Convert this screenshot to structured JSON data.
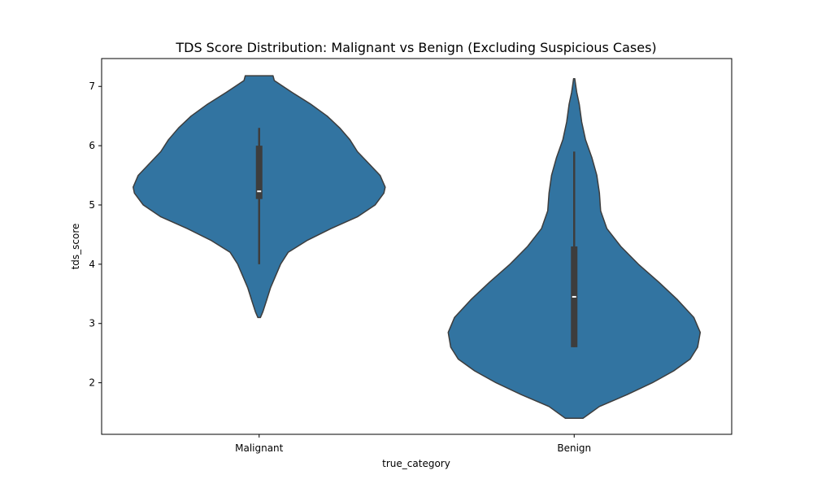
{
  "chart_data": {
    "type": "violin",
    "title": "TDS Score Distribution: Malignant vs Benign (Excluding Suspicious Cases)",
    "xlabel": "true_category",
    "ylabel": "tds_score",
    "categories": [
      "Malignant",
      "Benign"
    ],
    "ylim": [
      1.13,
      7.47
    ],
    "yticks": [
      2,
      3,
      4,
      5,
      6,
      7
    ],
    "grid": false,
    "colors": {
      "violin": "#3274a1",
      "edge": "#3d3d3d",
      "box": "#3d3d3d",
      "median": "#ffffff"
    },
    "violins": [
      {
        "name": "Malignant",
        "min": 3.1,
        "max": 7.18,
        "whisker_low": 4.0,
        "whisker_high": 6.3,
        "q1": 5.1,
        "median": 5.23,
        "q3": 6.0,
        "density_profile": [
          [
            3.1,
            0.01
          ],
          [
            3.2,
            0.03
          ],
          [
            3.4,
            0.06
          ],
          [
            3.6,
            0.09
          ],
          [
            3.8,
            0.13
          ],
          [
            4.0,
            0.17
          ],
          [
            4.2,
            0.23
          ],
          [
            4.4,
            0.38
          ],
          [
            4.6,
            0.57
          ],
          [
            4.8,
            0.78
          ],
          [
            5.0,
            0.92
          ],
          [
            5.2,
            0.99
          ],
          [
            5.3,
            1.0
          ],
          [
            5.5,
            0.96
          ],
          [
            5.7,
            0.87
          ],
          [
            5.9,
            0.78
          ],
          [
            6.1,
            0.72
          ],
          [
            6.3,
            0.64
          ],
          [
            6.5,
            0.54
          ],
          [
            6.7,
            0.41
          ],
          [
            6.9,
            0.26
          ],
          [
            7.0,
            0.19
          ],
          [
            7.1,
            0.12
          ],
          [
            7.18,
            0.11
          ]
        ]
      },
      {
        "name": "Benign",
        "min": 1.4,
        "max": 7.13,
        "whisker_low": 2.6,
        "whisker_high": 5.9,
        "q1": 2.6,
        "median": 3.45,
        "q3": 4.3,
        "density_profile": [
          [
            1.4,
            0.07
          ],
          [
            1.6,
            0.2
          ],
          [
            1.8,
            0.42
          ],
          [
            2.0,
            0.62
          ],
          [
            2.2,
            0.79
          ],
          [
            2.4,
            0.92
          ],
          [
            2.6,
            0.98
          ],
          [
            2.85,
            1.0
          ],
          [
            3.1,
            0.95
          ],
          [
            3.4,
            0.82
          ],
          [
            3.7,
            0.67
          ],
          [
            4.0,
            0.51
          ],
          [
            4.3,
            0.37
          ],
          [
            4.6,
            0.26
          ],
          [
            4.9,
            0.21
          ],
          [
            5.2,
            0.2
          ],
          [
            5.5,
            0.18
          ],
          [
            5.8,
            0.14
          ],
          [
            6.1,
            0.09
          ],
          [
            6.4,
            0.06
          ],
          [
            6.7,
            0.04
          ],
          [
            6.9,
            0.02
          ],
          [
            7.05,
            0.01
          ],
          [
            7.13,
            0.005
          ]
        ]
      }
    ]
  }
}
